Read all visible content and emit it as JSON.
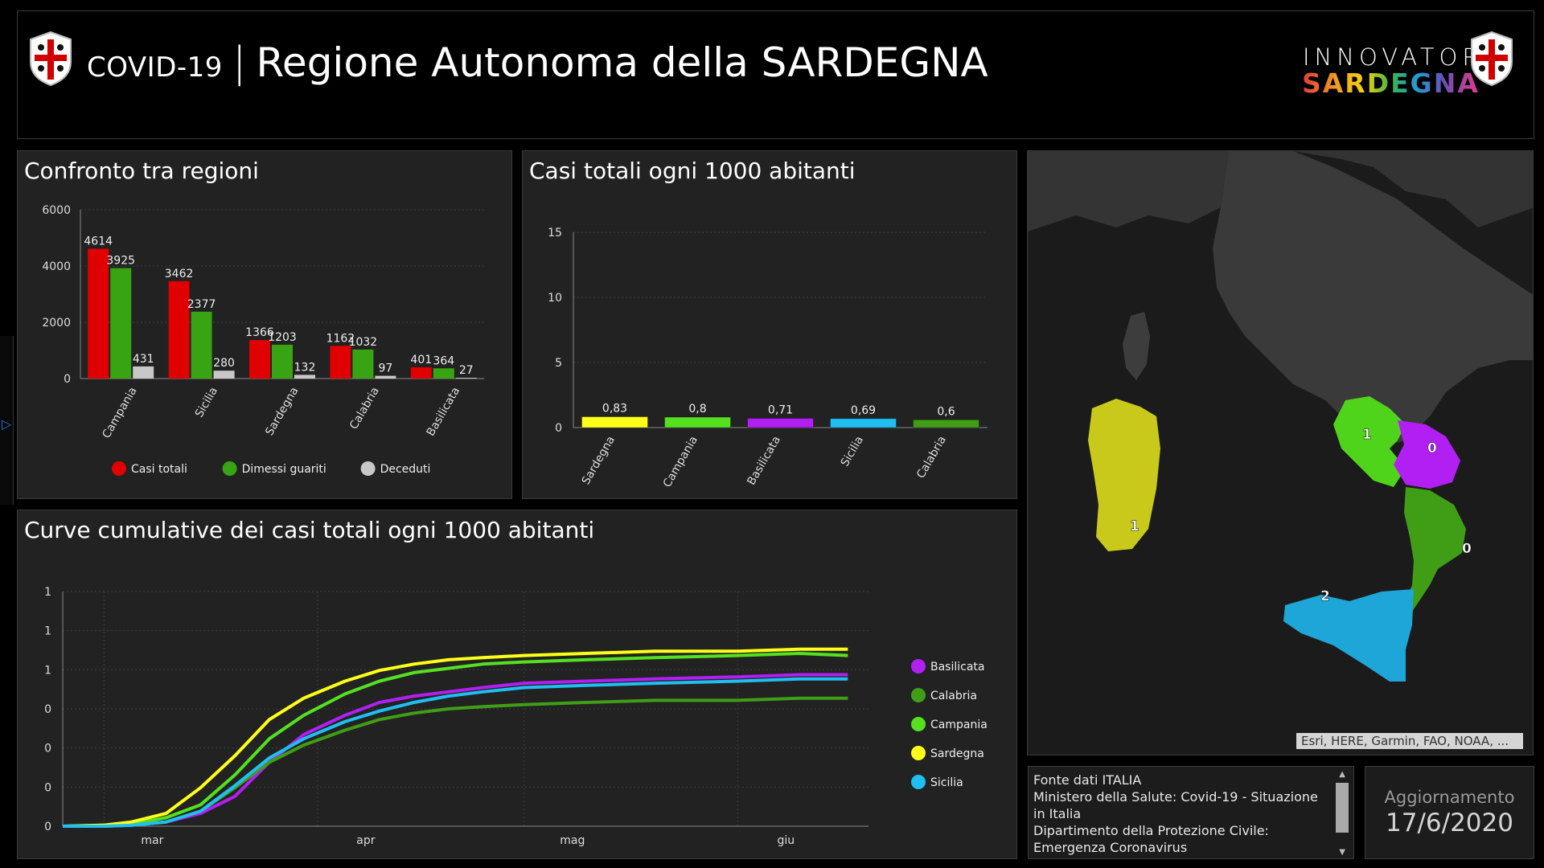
{
  "header": {
    "title_small": "COVID-19",
    "title_sep": "|",
    "title_big": "Regione Autonoma della SARDEGNA",
    "logo_top": "INNOVATORI",
    "logo_bottom": "SARDEGNA"
  },
  "colors": {
    "casi_totali": "#e00000",
    "dimessi_guariti": "#38a313",
    "deceduti": "#c8c8c8",
    "Basilicata": "#b21ff2",
    "Calabria": "#3f9e16",
    "Campania": "#55e020",
    "Sardegna": "#ffff1a",
    "Sicilia": "#1fbff2"
  },
  "chart_data": [
    {
      "type": "bar",
      "title": "Confronto tra regioni",
      "categories": [
        "Campania",
        "Sicilia",
        "Sardegna",
        "Calabria",
        "Basilicata"
      ],
      "series": [
        {
          "name": "Casi totali",
          "values": [
            4614,
            3462,
            1366,
            1162,
            401
          ],
          "labels": [
            "4614",
            "3462",
            "1366",
            "1162",
            "401"
          ]
        },
        {
          "name": "Dimessi guariti",
          "values": [
            3925,
            2377,
            1203,
            1032,
            364
          ],
          "labels": [
            "3925",
            "2377",
            "1203",
            "1032",
            "364"
          ]
        },
        {
          "name": "Deceduti",
          "values": [
            431,
            280,
            132,
            97,
            27
          ],
          "labels": [
            "431",
            "280",
            "132",
            "97",
            "27"
          ]
        }
      ],
      "yticks": [
        "0",
        "2000",
        "4000",
        "6000"
      ],
      "ylim": [
        0,
        6000
      ],
      "legend": "bottom"
    },
    {
      "type": "bar",
      "title": "Casi totali ogni 1000 abitanti",
      "categories": [
        "Sardegna",
        "Campania",
        "Basilicata",
        "Sicilia",
        "Calabria"
      ],
      "values": [
        0.83,
        0.8,
        0.71,
        0.69,
        0.6
      ],
      "labels": [
        "0,83",
        "0,8",
        "0,71",
        "0,69",
        "0,6"
      ],
      "colors": [
        "#ffff1a",
        "#55e020",
        "#b21ff2",
        "#1fbff2",
        "#3f9e16"
      ],
      "yticks": [
        "0",
        "5",
        "10",
        "15"
      ],
      "ylim": [
        0,
        15
      ]
    },
    {
      "type": "line",
      "title": "Curve cumulative dei casi totali ogni 1000 abitanti",
      "x": [
        "2020-02-24",
        "2020-03-01",
        "2020-03-05",
        "2020-03-10",
        "2020-03-15",
        "2020-03-20",
        "2020-03-25",
        "2020-03-30",
        "2020-04-05",
        "2020-04-10",
        "2020-04-15",
        "2020-04-20",
        "2020-04-25",
        "2020-05-01",
        "2020-05-10",
        "2020-05-20",
        "2020-06-01",
        "2020-06-10",
        "2020-06-17"
      ],
      "xticks": [
        "mar",
        "apr",
        "mag",
        "giu"
      ],
      "yticks": [
        "0",
        "0",
        "0",
        "0",
        "1",
        "1",
        "1"
      ],
      "ylim": [
        0,
        1.1
      ],
      "series": [
        {
          "name": "Basilicata",
          "values": [
            0,
            0,
            0.005,
            0.02,
            0.06,
            0.14,
            0.3,
            0.43,
            0.52,
            0.58,
            0.61,
            0.63,
            0.65,
            0.67,
            0.68,
            0.69,
            0.7,
            0.71,
            0.71
          ]
        },
        {
          "name": "Calabria",
          "values": [
            0,
            0,
            0.005,
            0.02,
            0.07,
            0.18,
            0.3,
            0.38,
            0.45,
            0.5,
            0.53,
            0.55,
            0.56,
            0.57,
            0.58,
            0.59,
            0.59,
            0.6,
            0.6
          ]
        },
        {
          "name": "Campania",
          "values": [
            0,
            0.005,
            0.01,
            0.04,
            0.1,
            0.24,
            0.41,
            0.52,
            0.62,
            0.68,
            0.72,
            0.74,
            0.76,
            0.77,
            0.78,
            0.79,
            0.8,
            0.81,
            0.8
          ]
        },
        {
          "name": "Sardegna",
          "values": [
            0,
            0.005,
            0.02,
            0.06,
            0.18,
            0.33,
            0.5,
            0.6,
            0.68,
            0.73,
            0.76,
            0.78,
            0.79,
            0.8,
            0.81,
            0.82,
            0.82,
            0.83,
            0.83
          ]
        },
        {
          "name": "Sicilia",
          "values": [
            0,
            0,
            0.005,
            0.02,
            0.07,
            0.19,
            0.32,
            0.41,
            0.49,
            0.54,
            0.58,
            0.61,
            0.63,
            0.65,
            0.66,
            0.67,
            0.68,
            0.69,
            0.69
          ]
        }
      ],
      "legend": "right"
    }
  ],
  "map": {
    "labels": [
      {
        "region": "Sardegna",
        "value": "1"
      },
      {
        "region": "Campania",
        "value": "1"
      },
      {
        "region": "Basilicata",
        "value": "0"
      },
      {
        "region": "Calabria",
        "value": "0"
      },
      {
        "region": "Sicilia",
        "value": "2"
      }
    ],
    "attribution": "Esri, HERE, Garmin, FAO, NOAA, ..."
  },
  "source": {
    "lines": [
      "Fonte dati ITALIA",
      "Ministero della Salute: Covid-19 - Situazione in Italia",
      "Dipartimento della Protezione Civile: Emergenza Coronavirus"
    ]
  },
  "update": {
    "label": "Aggiornamento",
    "date": "17/6/2020"
  }
}
